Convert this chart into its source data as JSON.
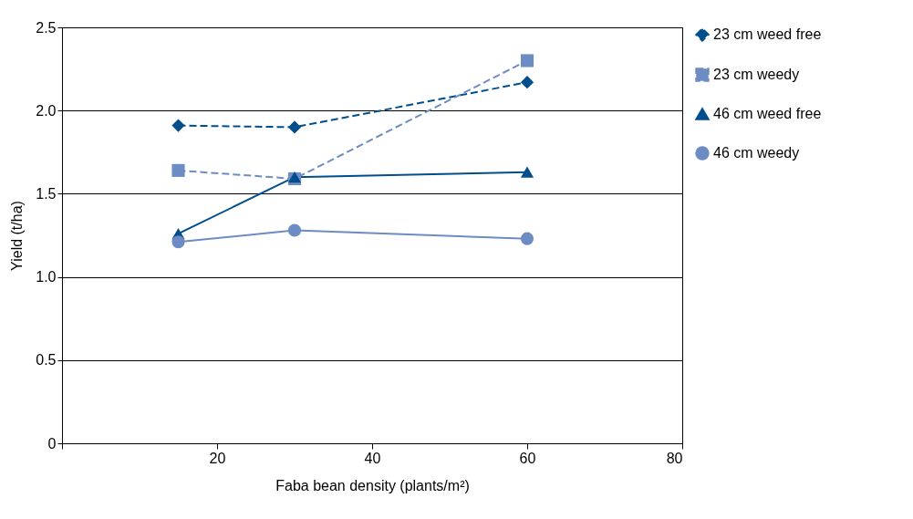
{
  "chart_data": {
    "type": "line",
    "xlabel": "Faba bean density (plants/m²)",
    "ylabel": "Yield (t/ha)",
    "x": [
      15,
      30,
      60
    ],
    "series": [
      {
        "name": "23 cm weed free",
        "color": "#004f8c",
        "marker": "diamond",
        "line_style": "dashed",
        "values": [
          1.91,
          1.9,
          2.17
        ]
      },
      {
        "name": "23 cm weedy",
        "color": "#6d8cc3",
        "marker": "square",
        "line_style": "dashed",
        "values": [
          1.64,
          1.59,
          2.3
        ]
      },
      {
        "name": "46 cm weed free",
        "color": "#004f8c",
        "marker": "triangle",
        "line_style": "solid",
        "values": [
          1.26,
          1.6,
          1.63
        ]
      },
      {
        "name": "46 cm weedy",
        "color": "#6d8cc3",
        "marker": "circle",
        "line_style": "solid",
        "values": [
          1.21,
          1.28,
          1.23
        ]
      }
    ],
    "xlim": [
      0,
      80
    ],
    "xticks": [
      {
        "value": 0,
        "label": null
      },
      20,
      40,
      60,
      80
    ],
    "ylim": [
      0,
      2.5
    ],
    "yticks": [
      0,
      {
        "value": 0.5,
        "label": "0.5"
      },
      {
        "value": 1,
        "label": "1.0"
      },
      {
        "value": 1.5,
        "label": "1.5"
      },
      {
        "value": 2,
        "label": "2.0"
      },
      {
        "value": 2.5,
        "label": "2.5"
      }
    ],
    "grid": "y",
    "legend": "right"
  }
}
